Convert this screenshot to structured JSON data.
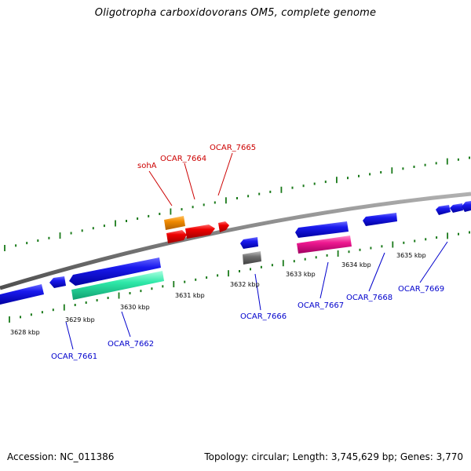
{
  "title": "Oligotropha carboxidovorans OM5, complete genome",
  "footer": {
    "accession": "Accession: NC_011386",
    "summary": "Topology: circular; Length: 3,745,629 bp; Genes: 3,770"
  },
  "colors": {
    "backbone": "#7a7a7a",
    "tick": "#1a7a1a",
    "forward_label": "#cc0000",
    "reverse_label": "#0000cc",
    "blue_gene": "#1010e0",
    "red_gene": "#ee0000",
    "orange_gene": "#f08a00",
    "green_gene": "#2ee8a8",
    "pink_gene": "#ee1890",
    "gray_gene": "#707070"
  },
  "kbp_labels": [
    "3628 kbp",
    "3629 kbp",
    "3630 kbp",
    "3631 kbp",
    "3632 kbp",
    "3633 kbp",
    "3634 kbp",
    "3635 kbp"
  ],
  "gene_labels_top": [
    "sohA",
    "OCAR_7664",
    "OCAR_7665"
  ],
  "gene_labels_bottom": [
    "OCAR_7661",
    "OCAR_7662",
    "OCAR_7666",
    "OCAR_7667",
    "OCAR_7668",
    "OCAR_7669"
  ]
}
